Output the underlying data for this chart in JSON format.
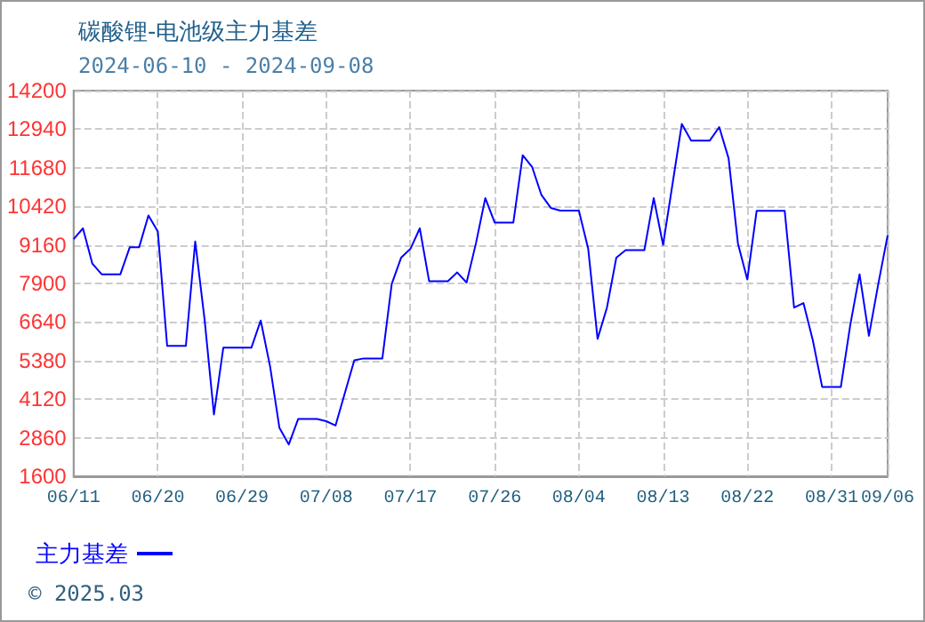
{
  "chart_data": {
    "type": "line",
    "title": "碳酸锂-电池级主力基差",
    "subtitle": "2024-06-10 - 2024-09-08",
    "annotations": [
      "© 2025.03"
    ],
    "x": [
      "2024-06-11",
      "2024-06-12",
      "2024-06-13",
      "2024-06-14",
      "2024-06-15",
      "2024-06-16",
      "2024-06-17",
      "2024-06-18",
      "2024-06-19",
      "2024-06-20",
      "2024-06-21",
      "2024-06-22",
      "2024-06-23",
      "2024-06-24",
      "2024-06-25",
      "2024-06-26",
      "2024-06-27",
      "2024-06-28",
      "2024-06-29",
      "2024-06-30",
      "2024-07-01",
      "2024-07-02",
      "2024-07-03",
      "2024-07-04",
      "2024-07-05",
      "2024-07-06",
      "2024-07-07",
      "2024-07-08",
      "2024-07-09",
      "2024-07-10",
      "2024-07-11",
      "2024-07-12",
      "2024-07-13",
      "2024-07-14",
      "2024-07-15",
      "2024-07-16",
      "2024-07-17",
      "2024-07-18",
      "2024-07-19",
      "2024-07-20",
      "2024-07-21",
      "2024-07-22",
      "2024-07-23",
      "2024-07-24",
      "2024-07-25",
      "2024-07-26",
      "2024-07-27",
      "2024-07-28",
      "2024-07-29",
      "2024-07-30",
      "2024-07-31",
      "2024-08-01",
      "2024-08-02",
      "2024-08-03",
      "2024-08-04",
      "2024-08-05",
      "2024-08-06",
      "2024-08-07",
      "2024-08-08",
      "2024-08-09",
      "2024-08-10",
      "2024-08-11",
      "2024-08-12",
      "2024-08-13",
      "2024-08-14",
      "2024-08-15",
      "2024-08-16",
      "2024-08-17",
      "2024-08-18",
      "2024-08-19",
      "2024-08-20",
      "2024-08-21",
      "2024-08-22",
      "2024-08-23",
      "2024-08-24",
      "2024-08-25",
      "2024-08-26",
      "2024-08-27",
      "2024-08-28",
      "2024-08-29",
      "2024-08-30",
      "2024-08-31",
      "2024-09-01",
      "2024-09-02",
      "2024-09-03",
      "2024-09-04",
      "2024-09-05",
      "2024-09-06"
    ],
    "series": [
      {
        "name": "主力基差",
        "color": "#0000ff",
        "values": [
          9350,
          9700,
          8550,
          8200,
          8200,
          8200,
          9080,
          9080,
          10120,
          9600,
          5860,
          5860,
          5860,
          9270,
          6720,
          3620,
          5800,
          5800,
          5800,
          5800,
          6690,
          5190,
          3180,
          2640,
          3470,
          3470,
          3470,
          3400,
          3260,
          4330,
          5390,
          5450,
          5450,
          5450,
          7880,
          8740,
          9030,
          9700,
          7970,
          7970,
          7970,
          8260,
          7930,
          9210,
          10690,
          9890,
          9890,
          9890,
          12090,
          11710,
          10790,
          10370,
          10280,
          10280,
          10280,
          9030,
          6090,
          7110,
          8740,
          8990,
          8990,
          8990,
          10690,
          9160,
          11130,
          13110,
          12570,
          12570,
          12570,
          13010,
          11990,
          9210,
          8030,
          10270,
          10270,
          10270,
          10270,
          7110,
          7260,
          6050,
          4520,
          4520,
          4520,
          6530,
          8200,
          6190,
          7880,
          9470
        ]
      }
    ],
    "xlim": [
      "2024-06-11",
      "2024-09-06"
    ],
    "xticks": [
      {
        "value": "2024-06-11",
        "label": "06/11"
      },
      {
        "value": "2024-06-20",
        "label": "06/20"
      },
      {
        "value": "2024-06-29",
        "label": "06/29"
      },
      {
        "value": "2024-07-08",
        "label": "07/08"
      },
      {
        "value": "2024-07-17",
        "label": "07/17"
      },
      {
        "value": "2024-07-26",
        "label": "07/26"
      },
      {
        "value": "2024-08-04",
        "label": "08/04"
      },
      {
        "value": "2024-08-13",
        "label": "08/13"
      },
      {
        "value": "2024-08-22",
        "label": "08/22"
      },
      {
        "value": "2024-08-31",
        "label": "08/31"
      },
      {
        "value": "2024-09-06",
        "label": "09/06"
      }
    ],
    "ylim": [
      1600,
      14200
    ],
    "yticks": [
      1600,
      2860,
      4120,
      5380,
      6640,
      7900,
      9160,
      10420,
      11680,
      12940,
      14200
    ],
    "grid": true,
    "legend": "bottom left",
    "marker": "none",
    "line_style": "solid"
  }
}
